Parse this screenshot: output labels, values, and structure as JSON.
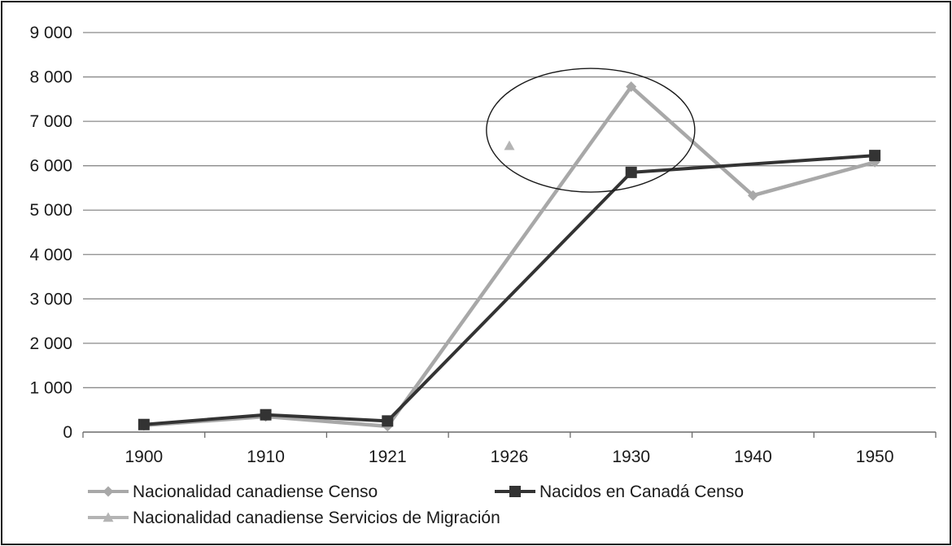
{
  "chart_data": {
    "type": "line",
    "categories": [
      "1900",
      "1910",
      "1921",
      "1926",
      "1930",
      "1940",
      "1950"
    ],
    "ylim": [
      0,
      9000
    ],
    "yticks": [
      "0",
      "1 000",
      "2 000",
      "3 000",
      "4 000",
      "5 000",
      "6 000",
      "7 000",
      "8 000",
      "9 000"
    ],
    "grid": true,
    "legend_position": "bottom",
    "series": [
      {
        "name": "Nacionalidad canadiense Censo",
        "marker": "diamond",
        "color": "#a8a8a8",
        "values": [
          150,
          350,
          130,
          null,
          7780,
          5330,
          6080
        ]
      },
      {
        "name": "Nacidos en Canadá Censo",
        "marker": "square",
        "color": "#333333",
        "values": [
          170,
          390,
          250,
          null,
          5850,
          null,
          6230
        ]
      },
      {
        "name": "Nacionalidad canadiense Servicios de Migración",
        "marker": "triangle",
        "color": "#b4b4b4",
        "values": [
          null,
          null,
          null,
          6450,
          null,
          null,
          null
        ]
      }
    ],
    "annotations": [
      {
        "type": "ellipse-highlight",
        "around": [
          "1926",
          "1930"
        ]
      }
    ]
  }
}
